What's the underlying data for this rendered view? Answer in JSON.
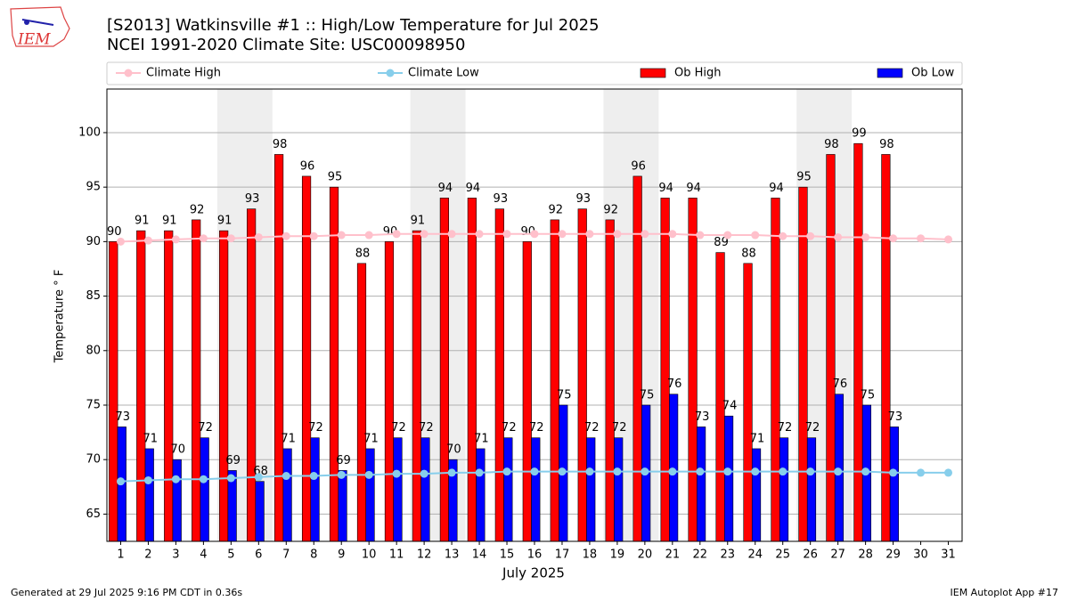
{
  "chart_data": {
    "type": "bar",
    "title": "[S2013] Watkinsville #1 :: High/Low Temperature for Jul 2025",
    "subtitle": "NCEI 1991-2020 Climate Site: USC00098950",
    "x_label": "July 2025",
    "y_label": "Temperature ° F",
    "footer_left": "Generated at 29 Jul 2025 9:16 PM CDT in 0.36s",
    "footer_right": "IEM Autoplot App #17",
    "logo_text": "IEM",
    "x": [
      1,
      2,
      3,
      4,
      5,
      6,
      7,
      8,
      9,
      10,
      11,
      12,
      13,
      14,
      15,
      16,
      17,
      18,
      19,
      20,
      21,
      22,
      23,
      24,
      25,
      26,
      27,
      28,
      29,
      30,
      31
    ],
    "xlim": [
      0.5,
      31.5
    ],
    "xticks": [
      1,
      2,
      3,
      4,
      5,
      6,
      7,
      8,
      9,
      10,
      11,
      12,
      13,
      14,
      15,
      16,
      17,
      18,
      19,
      20,
      21,
      22,
      23,
      24,
      25,
      26,
      27,
      28,
      29,
      30,
      31
    ],
    "ylim": [
      62.5,
      104
    ],
    "yticks": [
      65,
      70,
      75,
      80,
      85,
      90,
      95,
      100
    ],
    "grid": true,
    "shaded": [
      [
        5,
        6
      ],
      [
        12,
        13
      ],
      [
        19,
        20
      ],
      [
        26,
        27
      ]
    ],
    "series": [
      {
        "name": "Climate High",
        "type": "line",
        "color": "#ffc0cb",
        "values": [
          90.0,
          90.1,
          90.2,
          90.3,
          90.3,
          90.4,
          90.5,
          90.5,
          90.6,
          90.6,
          90.7,
          90.7,
          90.7,
          90.7,
          90.7,
          90.7,
          90.7,
          90.7,
          90.7,
          90.7,
          90.7,
          90.6,
          90.6,
          90.6,
          90.5,
          90.5,
          90.4,
          90.4,
          90.3,
          90.3,
          90.2
        ]
      },
      {
        "name": "Climate Low",
        "type": "line",
        "color": "#87ceeb",
        "values": [
          68.0,
          68.1,
          68.2,
          68.2,
          68.3,
          68.4,
          68.5,
          68.5,
          68.6,
          68.6,
          68.7,
          68.7,
          68.8,
          68.8,
          68.9,
          68.9,
          68.9,
          68.9,
          68.9,
          68.9,
          68.9,
          68.9,
          68.9,
          68.9,
          68.9,
          68.9,
          68.9,
          68.9,
          68.8,
          68.8,
          68.8
        ]
      },
      {
        "name": "Ob High",
        "type": "bar",
        "color": "#ff0000",
        "values": [
          90,
          91,
          91,
          92,
          91,
          93,
          98,
          96,
          95,
          88,
          90,
          91,
          94,
          94,
          93,
          90,
          92,
          93,
          92,
          96,
          94,
          94,
          89,
          88,
          94,
          95,
          98,
          99,
          98,
          null,
          null
        ]
      },
      {
        "name": "Ob Low",
        "type": "bar",
        "color": "#0000ff",
        "values": [
          73,
          71,
          70,
          72,
          69,
          68,
          71,
          72,
          69,
          71,
          72,
          72,
          70,
          71,
          72,
          72,
          75,
          72,
          72,
          75,
          76,
          73,
          74,
          71,
          72,
          72,
          76,
          75,
          73,
          null,
          null
        ]
      }
    ]
  }
}
